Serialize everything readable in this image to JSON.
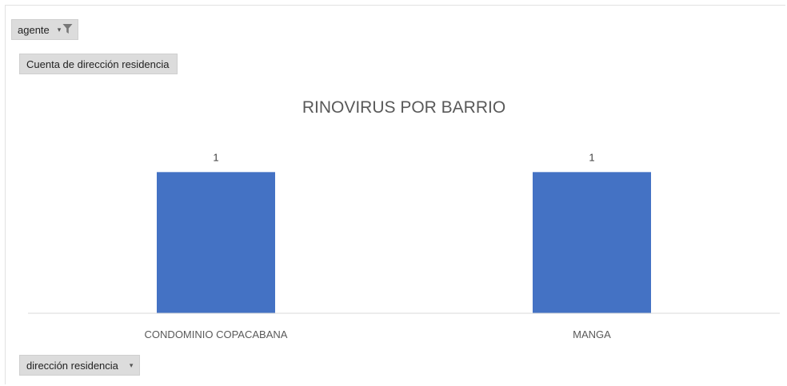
{
  "filter_field": {
    "label": "agente",
    "dropdown_icon": "dropdown-arrow-icon",
    "filter_icon": "filter-funnel-icon"
  },
  "value_field": {
    "label": "Cuenta de dirección residencia"
  },
  "axis_field": {
    "label": "dirección residencia",
    "dropdown_icon": "dropdown-arrow-icon"
  },
  "chart_data": {
    "type": "bar",
    "title": "RINOVIRUS POR BARRIO",
    "categories": [
      "CONDOMINIO COPACABANA",
      "MANGA"
    ],
    "values": [
      1,
      1
    ],
    "data_labels": [
      "1",
      "1"
    ],
    "bar_color": "#4472C4",
    "ylim": [
      0,
      1.2
    ],
    "grid": false,
    "legend": "none"
  }
}
